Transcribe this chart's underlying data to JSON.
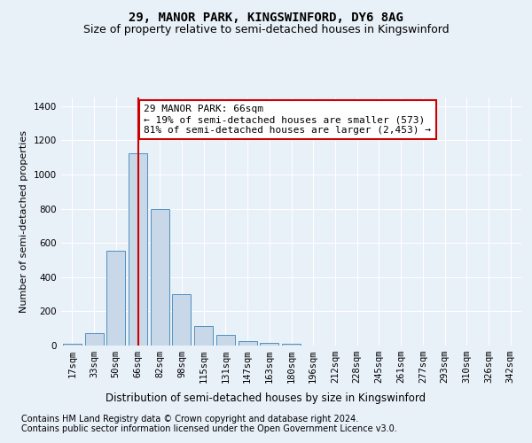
{
  "title": "29, MANOR PARK, KINGSWINFORD, DY6 8AG",
  "subtitle": "Size of property relative to semi-detached houses in Kingswinford",
  "xlabel": "Distribution of semi-detached houses by size in Kingswinford",
  "ylabel": "Number of semi-detached properties",
  "footer_line1": "Contains HM Land Registry data © Crown copyright and database right 2024.",
  "footer_line2": "Contains public sector information licensed under the Open Government Licence v3.0.",
  "categories": [
    "17sqm",
    "33sqm",
    "50sqm",
    "66sqm",
    "82sqm",
    "98sqm",
    "115sqm",
    "131sqm",
    "147sqm",
    "163sqm",
    "180sqm",
    "196sqm",
    "212sqm",
    "228sqm",
    "245sqm",
    "261sqm",
    "277sqm",
    "293sqm",
    "310sqm",
    "326sqm",
    "342sqm"
  ],
  "values": [
    10,
    75,
    555,
    1125,
    795,
    300,
    115,
    60,
    25,
    15,
    10,
    0,
    0,
    0,
    0,
    0,
    0,
    0,
    0,
    0,
    0
  ],
  "bar_color": "#c8d8e8",
  "bar_edge_color": "#5090c0",
  "highlight_index": 3,
  "highlight_line_color": "#cc0000",
  "annotation_text": "29 MANOR PARK: 66sqm\n← 19% of semi-detached houses are smaller (573)\n81% of semi-detached houses are larger (2,453) →",
  "annotation_box_color": "#ffffff",
  "annotation_box_edge_color": "#cc0000",
  "ylim": [
    0,
    1450
  ],
  "yticks": [
    0,
    200,
    400,
    600,
    800,
    1000,
    1200,
    1400
  ],
  "bg_color": "#e8f0f8",
  "plot_bg_color": "#e8f0f8",
  "grid_color": "#ffffff",
  "title_fontsize": 10,
  "subtitle_fontsize": 9,
  "xlabel_fontsize": 8.5,
  "ylabel_fontsize": 8,
  "tick_fontsize": 7.5,
  "annotation_fontsize": 8,
  "footer_fontsize": 7
}
